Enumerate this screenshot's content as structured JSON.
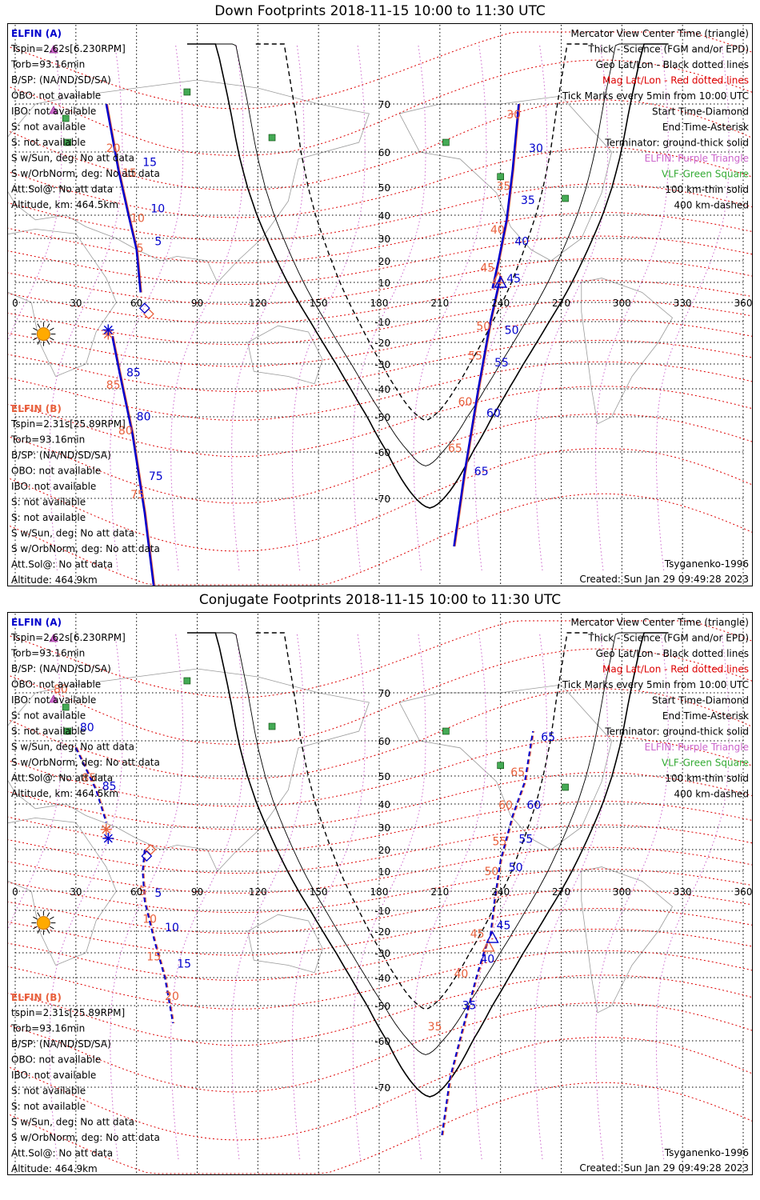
{
  "colors": {
    "a_blue": "#0000cc",
    "b_red": "#e8603c",
    "mag_red": "#dd0000",
    "purple": "#cc66cc",
    "green": "#33aa33",
    "grid": "#000000",
    "land": "#9a9a9a",
    "sun": "#ffaa00"
  },
  "panels": [
    {
      "title": "Down Footprints 2018-11-15 10:00 to 11:30 UTC",
      "info_a": {
        "header": "ELFIN (A)",
        "lines": [
          "Tspin=2.62s[6.230RPM]",
          "Torb=93.16min",
          "B/SP: (NA/ND/SD/SA)",
          "OBO: not available",
          "IBO: not available",
          "S: not available",
          "S: not available",
          "S w/Sun, deg: No att data",
          "S w/OrbNorm, deg: No att data",
          "Att.Sol@: No att data",
          "Altitude, km: 464.5km"
        ]
      },
      "info_b": {
        "header": "ELFIN (B)",
        "lines": [
          "Tspin=2.31s[25.89RPM]",
          "Torb=93.16min",
          "B/SP: (NA/ND/SD/SA)",
          "OBO: not available",
          "IBO: not available",
          "S: not available",
          "S: not available",
          "S w/Sun, deg: No att data",
          "S w/OrbNorm, deg: No att data",
          "Att.Sol@: No att data",
          "Altitude: 464.9km"
        ]
      },
      "legend": [
        "Mercator View Center Time (triangle)",
        "Thick - Science (FGM and/or EPD)",
        "Geo Lat/Lon - Black dotted lines",
        "Mag Lat/Lon - Red dotted lines",
        "Tick Marks every 5min from 10:00 UTC",
        "Start Time-Diamond",
        "End Time-Asterisk",
        "Terminator: ground-thick solid",
        "ELFIN: Purple Triangle",
        "VLF-Green Square",
        "100 km-thin solid",
        "400 km-dashed"
      ],
      "model": "Tsyganenko-1996",
      "created": "Created: Sun Jan 29 09:49:28 2023"
    },
    {
      "title": "Conjugate Footprints 2018-11-15 10:00 to 11:30 UTC",
      "info_a": {
        "header": "ELFIN (A)",
        "lines": [
          "Tspin=2.62s[6.230RPM]",
          "Torb=93.16min",
          "B/SP: (NA/ND/SD/SA)",
          "OBO: not available",
          "IBO: not available",
          "S: not available",
          "S: not available",
          "S w/Sun, deg: No att data",
          "S w/OrbNorm, deg: No att data",
          "Att.Sol@: No att data",
          "Altitude, km: 464.5km"
        ]
      },
      "info_b": {
        "header": "ELFIN (B)",
        "lines": [
          "tspin=2.31s[25.89RPM]",
          "Torb=93.16min",
          "B/SP: (NA/ND/SD/SA)",
          "OBO: not available",
          "IBO: not available",
          "S: not available",
          "S: not available",
          "S w/Sun, deg: No att data",
          "S w/OrbNorm, deg: No att data",
          "Att.Sol@: No att data",
          "Altitude: 464.9km"
        ]
      },
      "legend": [
        "Mercator View Center Time (triangle)",
        "Thick - Science (FGM and/or EPD)",
        "Geo Lat/Lon - Black dotted lines",
        "Mag Lat/Lon - Red dotted lines",
        "Tick Marks every 5min from 10:00 UTC",
        "Start Time-Diamond",
        "End Time-Asterisk",
        "Terminator: ground-thick solid",
        "ELFIN: Purple Triangle",
        "VLF-Green Square",
        "100 km-thin solid",
        "400 km-dashed"
      ],
      "model": "Tsyganenko-1996",
      "created": "Created: Sun Jan 29 09:49:28 2023"
    }
  ],
  "axes": {
    "lon_ticks": [
      "0",
      "30",
      "60",
      "90",
      "120",
      "150",
      "180",
      "210",
      "240",
      "270",
      "300",
      "330",
      "360"
    ],
    "lat_ticks": [
      "70",
      "60",
      "50",
      "40",
      "30",
      "20",
      "10",
      "-10",
      "-20",
      "-30",
      "-40",
      "-50",
      "-60",
      "-70"
    ]
  },
  "tracks": {
    "down": {
      "a1": {
        "points": [
          [
            45,
            70
          ],
          [
            51,
            55
          ],
          [
            56,
            40
          ],
          [
            60,
            25
          ],
          [
            62,
            5
          ]
        ],
        "labels": [
          [
            "20",
            "b",
            45,
            60
          ],
          [
            "15",
            "a",
            63,
            56
          ],
          [
            "15",
            "b",
            53,
            53
          ],
          [
            "10",
            "a",
            67,
            41
          ],
          [
            "10",
            "b",
            57,
            37
          ],
          [
            "5",
            "a",
            69,
            27
          ],
          [
            "5",
            "b",
            60,
            24
          ]
        ]
      },
      "b1": {
        "points": [
          [
            48,
            -17
          ],
          [
            52,
            -35
          ],
          [
            58,
            -55
          ],
          [
            64,
            -73
          ],
          [
            69,
            -90
          ]
        ],
        "labels": [
          [
            "85",
            "a",
            55,
            -35
          ],
          [
            "85",
            "b",
            45,
            -40
          ],
          [
            "80",
            "a",
            60,
            -51
          ],
          [
            "80",
            "b",
            51,
            -55
          ],
          [
            "75",
            "a",
            66,
            -66
          ],
          [
            "75",
            "b",
            57,
            -70
          ]
        ]
      },
      "a2": {
        "points": [
          [
            236,
            7
          ],
          [
            239,
            20
          ],
          [
            243,
            38
          ],
          [
            246,
            55
          ],
          [
            249,
            70
          ]
        ],
        "labels": [
          [
            "45",
            "a",
            243,
            10
          ],
          [
            "45",
            "b",
            230,
            15
          ],
          [
            "40",
            "a",
            247,
            27
          ],
          [
            "40",
            "b",
            235,
            32
          ],
          [
            "35",
            "a",
            250,
            44
          ],
          [
            "35",
            "b",
            238,
            49
          ],
          [
            "30",
            "a",
            254,
            60
          ],
          [
            "30",
            "b",
            243,
            67
          ]
        ]
      },
      "b2": {
        "points": [
          [
            240,
            13
          ],
          [
            235,
            -10
          ],
          [
            229,
            -40
          ],
          [
            222,
            -65
          ],
          [
            217,
            -80
          ]
        ],
        "labels": [
          [
            "50",
            "a",
            242,
            -16
          ],
          [
            "50",
            "b",
            228,
            -14
          ],
          [
            "55",
            "a",
            237,
            -31
          ],
          [
            "55",
            "b",
            224,
            -28
          ],
          [
            "60",
            "a",
            233,
            -50
          ],
          [
            "60",
            "b",
            219,
            -46
          ],
          [
            "65",
            "a",
            227,
            -65
          ],
          [
            "65",
            "b",
            214,
            -60
          ]
        ]
      },
      "start_a": [
        64,
        -3
      ],
      "start_b": [
        66,
        -6
      ],
      "end_a": [
        46,
        -14
      ],
      "end_b": [
        46,
        -16
      ],
      "center_a": [
        240,
        10
      ],
      "center_b": [
        239,
        12
      ]
    },
    "conj": {
      "a1": {
        "points": [
          [
            64,
            20
          ],
          [
            63,
            10
          ],
          [
            64,
            -5
          ],
          [
            69,
            -25
          ],
          [
            74,
            -40
          ],
          [
            78,
            -55
          ]
        ],
        "labels": [
          [
            "5",
            "a",
            69,
            -3
          ],
          [
            "5",
            "b",
            61,
            -2
          ],
          [
            "10",
            "a",
            74,
            -20
          ],
          [
            "10",
            "b",
            63,
            -16
          ],
          [
            "15",
            "a",
            80,
            -36
          ],
          [
            "15",
            "b",
            65,
            -33
          ],
          [
            "20",
            "b",
            74,
            -48
          ]
        ]
      },
      "b1": {
        "points": [
          [
            30,
            58
          ],
          [
            35,
            52
          ],
          [
            40,
            45
          ],
          [
            45,
            32
          ]
        ],
        "labels": [
          [
            "80",
            "b",
            19,
            70
          ],
          [
            "80",
            "a",
            32,
            62
          ],
          [
            "85",
            "b",
            33,
            48
          ],
          [
            "85",
            "a",
            43,
            45
          ]
        ]
      },
      "a2": {
        "points": [
          [
            235,
            -22
          ],
          [
            237,
            -5
          ],
          [
            240,
            15
          ],
          [
            246,
            35
          ],
          [
            252,
            48
          ],
          [
            256,
            62
          ]
        ],
        "labels": [
          [
            "50",
            "a",
            244,
            10
          ],
          [
            "50",
            "b",
            232,
            8
          ],
          [
            "55",
            "a",
            249,
            23
          ],
          [
            "55",
            "b",
            236,
            22
          ],
          [
            "60",
            "a",
            253,
            38
          ],
          [
            "60",
            "b",
            239,
            38
          ],
          [
            "65",
            "a",
            260,
            60
          ],
          [
            "65",
            "b",
            245,
            50
          ]
        ]
      },
      "b2": {
        "points": [
          [
            233,
            -26
          ],
          [
            228,
            -40
          ],
          [
            222,
            -55
          ],
          [
            215,
            -68
          ],
          [
            211,
            -80
          ]
        ],
        "labels": [
          [
            "45",
            "a",
            238,
            -19
          ],
          [
            "45",
            "b",
            225,
            -23
          ],
          [
            "40",
            "a",
            230,
            -34
          ],
          [
            "40",
            "b",
            217,
            -40
          ],
          [
            "35",
            "a",
            221,
            -51
          ],
          [
            "35",
            "b",
            204,
            -57
          ]
        ]
      },
      "start_a": [
        65,
        17
      ],
      "start_b": [
        67,
        20
      ],
      "end_a": [
        46,
        25
      ],
      "end_b": [
        45,
        29
      ],
      "center_a": [
        236,
        -23
      ],
      "center_b": [
        234,
        -27
      ]
    }
  }
}
